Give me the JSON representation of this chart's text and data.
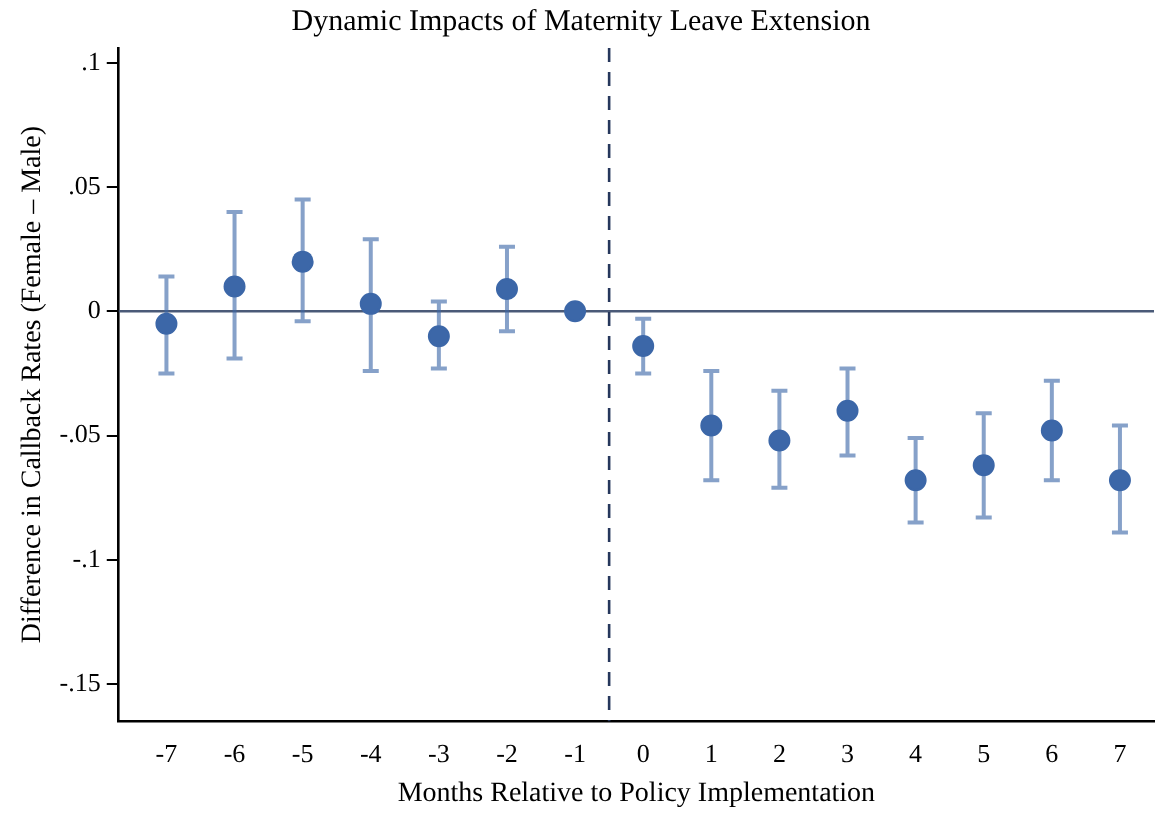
{
  "chart_data": {
    "type": "scatter",
    "title": "Dynamic Impacts of Maternity Leave Extension",
    "xlabel": "Months Relative to Policy Implementation",
    "ylabel": "Difference in Callback Rates (Female – Male)",
    "x": [
      -7,
      -6,
      -5,
      -4,
      -3,
      -2,
      -1,
      0,
      1,
      2,
      3,
      4,
      5,
      6,
      7
    ],
    "series": [
      {
        "color": "#3c67a8",
        "values": [
          -0.005,
          0.01,
          0.02,
          0.003,
          -0.01,
          0.009,
          0,
          -0.014,
          -0.046,
          -0.052,
          -0.04,
          -0.068,
          -0.062,
          -0.048,
          -0.068
        ],
        "errors": [
          [
            -0.025,
            0.014
          ],
          [
            -0.019,
            0.04
          ],
          [
            -0.004,
            0.045
          ],
          [
            -0.024,
            0.029
          ],
          [
            -0.023,
            0.004
          ],
          [
            -0.008,
            0.026
          ],
          null,
          [
            -0.025,
            -0.003
          ],
          [
            -0.068,
            -0.024
          ],
          [
            -0.071,
            -0.032
          ],
          [
            -0.058,
            -0.023
          ],
          [
            -0.085,
            -0.051
          ],
          [
            -0.083,
            -0.041
          ],
          [
            -0.068,
            -0.028
          ],
          [
            -0.089,
            -0.046
          ]
        ]
      }
    ],
    "xlim": [
      -7.7,
      7.5
    ],
    "xticks": [
      -7,
      -6,
      -5,
      -4,
      -3,
      -2,
      -1,
      0,
      1,
      2,
      3,
      4,
      5,
      6,
      7
    ],
    "ylim": [
      -0.165,
      0.106
    ],
    "yticks": [
      {
        "value": -0.15,
        "label": "-.15"
      },
      {
        "value": -0.1,
        "label": "-.1"
      },
      {
        "value": -0.05,
        "label": "-.05"
      },
      {
        "value": 0,
        "label": "0"
      },
      {
        "value": 0.05,
        "label": ".05"
      },
      {
        "value": 0.1,
        "label": ".1"
      }
    ],
    "ref_lines": [
      {
        "axis": "y",
        "value": 0,
        "color": "#4a5a78",
        "line_style": "solid"
      },
      {
        "axis": "x",
        "value": -0.5,
        "color": "#26375c",
        "line_style": "dashed"
      }
    ],
    "grid": false,
    "legend": false,
    "marker": "circle"
  }
}
